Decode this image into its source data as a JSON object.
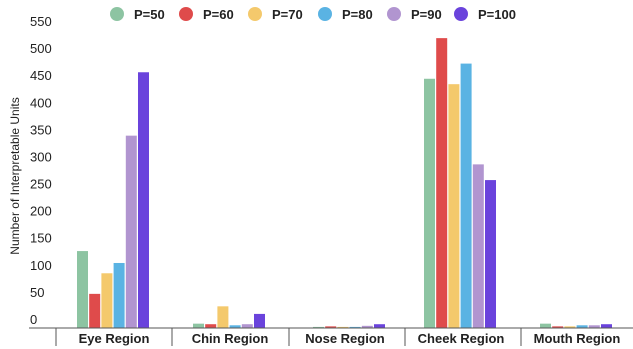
{
  "chart_data": {
    "type": "bar",
    "ylabel": "Number of Interpretable Units",
    "xlabel": "",
    "ylim": [
      0,
      550
    ],
    "yticks": [
      0,
      50,
      100,
      150,
      200,
      250,
      300,
      350,
      400,
      450,
      500,
      550
    ],
    "grid": false,
    "legend_position": "top",
    "categories": [
      "Eye Region",
      "Chin Region",
      "Nose Region",
      "Cheek Region",
      "Mouth Region"
    ],
    "series": [
      {
        "name": "P=50",
        "color": "#8dc4a2",
        "values": [
          142,
          8,
          2,
          460,
          8
        ]
      },
      {
        "name": "P=60",
        "color": "#df4b4b",
        "values": [
          63,
          7,
          3,
          535,
          3
        ]
      },
      {
        "name": "P=70",
        "color": "#f4c96c",
        "values": [
          101,
          40,
          2,
          450,
          3
        ]
      },
      {
        "name": "P=80",
        "color": "#5ab3e3",
        "values": [
          120,
          5,
          2,
          488,
          5
        ]
      },
      {
        "name": "P=90",
        "color": "#b195d0",
        "values": [
          355,
          7,
          4,
          302,
          5
        ]
      },
      {
        "name": "P=100",
        "color": "#6a43dc",
        "values": [
          472,
          26,
          7,
          273,
          7
        ]
      }
    ]
  }
}
